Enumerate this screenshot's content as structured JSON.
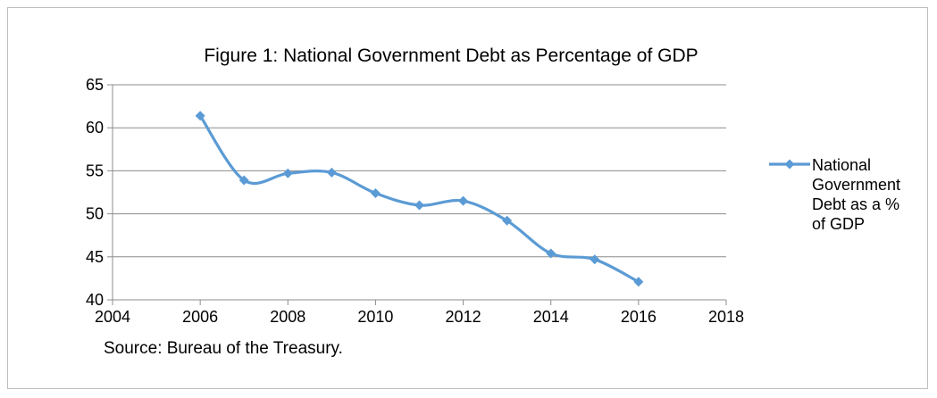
{
  "chart_data": {
    "type": "line",
    "title": "Figure 1: National Government Debt as Percentage of GDP",
    "xlabel": "",
    "ylabel": "",
    "xlim": [
      2004,
      2018
    ],
    "ylim": [
      40,
      65
    ],
    "x_ticks": [
      2004,
      2006,
      2008,
      2010,
      2012,
      2014,
      2016,
      2018
    ],
    "y_ticks": [
      40,
      45,
      50,
      55,
      60,
      65
    ],
    "grid": "horizontal",
    "smooth": true,
    "legend_position": "right",
    "series": [
      {
        "name": "National Government Debt as a % of GDP",
        "legend_lines": [
          "National",
          "Government",
          "Debt as a %",
          "of GDP"
        ],
        "color": "#5b9bd5",
        "marker": "diamond",
        "x": [
          2006,
          2007,
          2008,
          2009,
          2010,
          2011,
          2012,
          2013,
          2014,
          2015,
          2016
        ],
        "y": [
          61.4,
          53.9,
          54.7,
          54.8,
          52.4,
          51.0,
          51.5,
          49.2,
          45.4,
          44.7,
          42.1
        ]
      }
    ],
    "source": "Source: Bureau of the Treasury."
  }
}
